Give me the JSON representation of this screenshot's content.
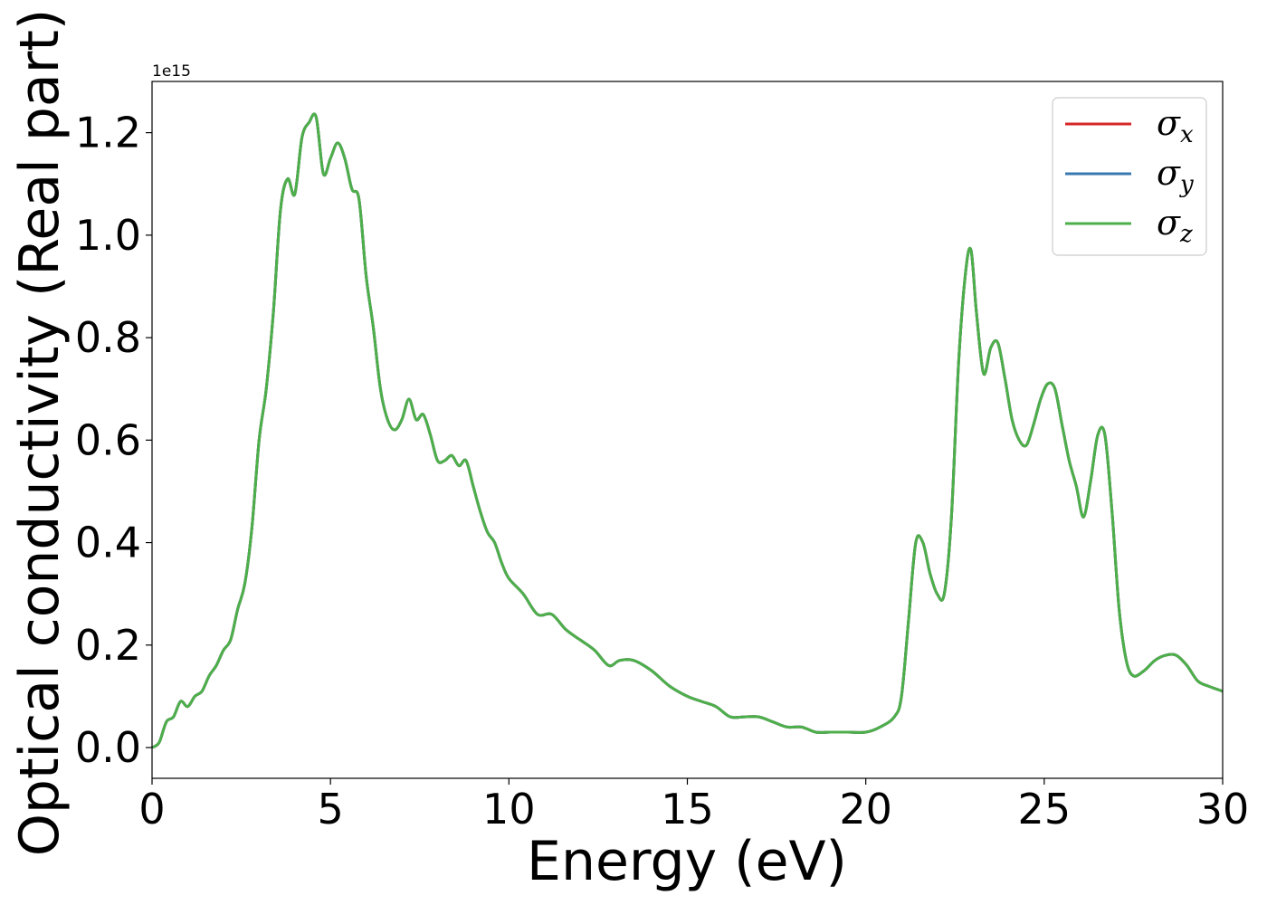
{
  "chart_data": {
    "type": "line",
    "title": "",
    "xlabel": "Energy (eV)",
    "ylabel": "Optical conductivity (Real part)",
    "y_offset_text": "1e15",
    "xlim": [
      0,
      30
    ],
    "ylim": [
      -0.06,
      1.3
    ],
    "x_ticks": [
      0,
      5,
      10,
      15,
      20,
      25,
      30
    ],
    "x_tick_labels": [
      "0",
      "5",
      "10",
      "15",
      "20",
      "25",
      "30"
    ],
    "y_ticks": [
      0.0,
      0.2,
      0.4,
      0.6,
      0.8,
      1.0,
      1.2
    ],
    "y_tick_labels": [
      "0.0",
      "0.2",
      "0.4",
      "0.6",
      "0.8",
      "1.0",
      "1.2"
    ],
    "grid": false,
    "legend_placement": "top-right",
    "x": [
      0,
      0.2,
      0.4,
      0.6,
      0.8,
      1.0,
      1.2,
      1.4,
      1.6,
      1.8,
      2.0,
      2.2,
      2.4,
      2.6,
      2.8,
      3.0,
      3.2,
      3.4,
      3.6,
      3.8,
      4.0,
      4.2,
      4.4,
      4.6,
      4.8,
      5.0,
      5.2,
      5.4,
      5.6,
      5.8,
      6.0,
      6.2,
      6.4,
      6.6,
      6.8,
      7.0,
      7.2,
      7.4,
      7.6,
      7.8,
      8.0,
      8.2,
      8.4,
      8.6,
      8.8,
      9.0,
      9.2,
      9.4,
      9.6,
      9.8,
      10.0,
      10.4,
      10.8,
      11.2,
      11.6,
      12.0,
      12.4,
      12.8,
      13.1,
      13.5,
      14.0,
      14.5,
      15.0,
      15.4,
      15.8,
      16.2,
      16.6,
      17.0,
      17.4,
      17.8,
      18.2,
      18.6,
      19.0,
      19.5,
      20.0,
      20.4,
      20.8,
      21.0,
      21.2,
      21.4,
      21.6,
      21.8,
      22.0,
      22.2,
      22.4,
      22.6,
      22.8,
      22.95,
      23.1,
      23.3,
      23.5,
      23.7,
      23.9,
      24.1,
      24.3,
      24.5,
      24.7,
      24.9,
      25.1,
      25.3,
      25.5,
      25.7,
      25.9,
      26.1,
      26.3,
      26.5,
      26.7,
      26.9,
      27.1,
      27.3,
      27.5,
      27.8,
      28.1,
      28.4,
      28.7,
      29.0,
      29.3,
      29.6,
      30.0
    ],
    "series": [
      {
        "name": "σ_x",
        "label_main": "σ",
        "label_sub": "x",
        "color": "#d62728",
        "values": [
          0.0,
          0.01,
          0.05,
          0.06,
          0.09,
          0.08,
          0.1,
          0.11,
          0.14,
          0.16,
          0.19,
          0.21,
          0.27,
          0.32,
          0.43,
          0.6,
          0.7,
          0.85,
          1.05,
          1.11,
          1.08,
          1.19,
          1.22,
          1.23,
          1.12,
          1.15,
          1.18,
          1.15,
          1.09,
          1.07,
          0.92,
          0.82,
          0.7,
          0.64,
          0.62,
          0.64,
          0.68,
          0.64,
          0.65,
          0.61,
          0.56,
          0.56,
          0.57,
          0.55,
          0.56,
          0.51,
          0.46,
          0.42,
          0.4,
          0.36,
          0.33,
          0.3,
          0.26,
          0.26,
          0.23,
          0.21,
          0.19,
          0.16,
          0.17,
          0.17,
          0.15,
          0.12,
          0.1,
          0.09,
          0.08,
          0.06,
          0.06,
          0.06,
          0.05,
          0.04,
          0.04,
          0.03,
          0.03,
          0.03,
          0.03,
          0.04,
          0.06,
          0.1,
          0.25,
          0.4,
          0.4,
          0.34,
          0.3,
          0.3,
          0.45,
          0.75,
          0.93,
          0.97,
          0.85,
          0.73,
          0.78,
          0.79,
          0.72,
          0.64,
          0.6,
          0.59,
          0.63,
          0.68,
          0.71,
          0.7,
          0.63,
          0.56,
          0.51,
          0.45,
          0.52,
          0.61,
          0.61,
          0.46,
          0.27,
          0.17,
          0.14,
          0.15,
          0.17,
          0.18,
          0.18,
          0.16,
          0.13,
          0.12,
          0.11
        ]
      },
      {
        "name": "σ_y",
        "label_main": "σ",
        "label_sub": "y",
        "color": "#3a78b0",
        "values": [
          0.0,
          0.01,
          0.05,
          0.06,
          0.09,
          0.08,
          0.1,
          0.11,
          0.14,
          0.16,
          0.19,
          0.21,
          0.27,
          0.32,
          0.43,
          0.6,
          0.7,
          0.85,
          1.05,
          1.11,
          1.08,
          1.19,
          1.22,
          1.23,
          1.12,
          1.15,
          1.18,
          1.15,
          1.09,
          1.07,
          0.92,
          0.82,
          0.7,
          0.64,
          0.62,
          0.64,
          0.68,
          0.64,
          0.65,
          0.61,
          0.56,
          0.56,
          0.57,
          0.55,
          0.56,
          0.51,
          0.46,
          0.42,
          0.4,
          0.36,
          0.33,
          0.3,
          0.26,
          0.26,
          0.23,
          0.21,
          0.19,
          0.16,
          0.17,
          0.17,
          0.15,
          0.12,
          0.1,
          0.09,
          0.08,
          0.06,
          0.06,
          0.06,
          0.05,
          0.04,
          0.04,
          0.03,
          0.03,
          0.03,
          0.03,
          0.04,
          0.06,
          0.1,
          0.25,
          0.4,
          0.4,
          0.34,
          0.3,
          0.3,
          0.45,
          0.75,
          0.93,
          0.97,
          0.85,
          0.73,
          0.78,
          0.79,
          0.72,
          0.64,
          0.6,
          0.59,
          0.63,
          0.68,
          0.71,
          0.7,
          0.63,
          0.56,
          0.51,
          0.45,
          0.52,
          0.61,
          0.61,
          0.46,
          0.27,
          0.17,
          0.14,
          0.15,
          0.17,
          0.18,
          0.18,
          0.16,
          0.13,
          0.12,
          0.11
        ]
      },
      {
        "name": "σ_z",
        "label_main": "σ",
        "label_sub": "z",
        "color": "#4daf4a",
        "values": [
          0.0,
          0.01,
          0.05,
          0.06,
          0.09,
          0.08,
          0.1,
          0.11,
          0.14,
          0.16,
          0.19,
          0.21,
          0.27,
          0.32,
          0.43,
          0.6,
          0.7,
          0.85,
          1.05,
          1.11,
          1.08,
          1.19,
          1.22,
          1.23,
          1.12,
          1.15,
          1.18,
          1.15,
          1.09,
          1.07,
          0.92,
          0.82,
          0.7,
          0.64,
          0.62,
          0.64,
          0.68,
          0.64,
          0.65,
          0.61,
          0.56,
          0.56,
          0.57,
          0.55,
          0.56,
          0.51,
          0.46,
          0.42,
          0.4,
          0.36,
          0.33,
          0.3,
          0.26,
          0.26,
          0.23,
          0.21,
          0.19,
          0.16,
          0.17,
          0.17,
          0.15,
          0.12,
          0.1,
          0.09,
          0.08,
          0.06,
          0.06,
          0.06,
          0.05,
          0.04,
          0.04,
          0.03,
          0.03,
          0.03,
          0.03,
          0.04,
          0.06,
          0.1,
          0.25,
          0.4,
          0.4,
          0.34,
          0.3,
          0.3,
          0.45,
          0.75,
          0.93,
          0.97,
          0.85,
          0.73,
          0.78,
          0.79,
          0.72,
          0.64,
          0.6,
          0.59,
          0.63,
          0.68,
          0.71,
          0.7,
          0.63,
          0.56,
          0.51,
          0.45,
          0.52,
          0.61,
          0.61,
          0.46,
          0.27,
          0.17,
          0.14,
          0.15,
          0.17,
          0.18,
          0.18,
          0.16,
          0.13,
          0.12,
          0.11
        ]
      }
    ]
  }
}
